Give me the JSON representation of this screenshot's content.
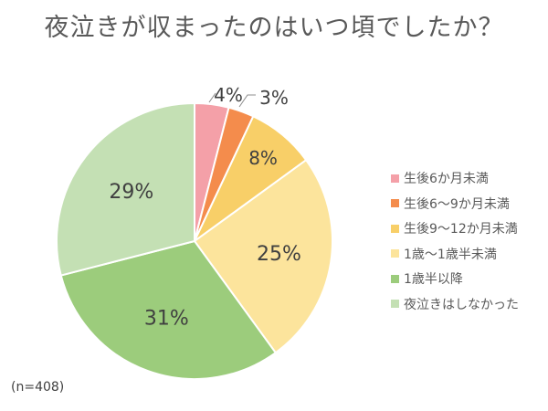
{
  "chart_data": {
    "type": "pie",
    "title": "夜泣きが収まったのはいつ頃でしたか？",
    "categories": [
      "生後6か月未満",
      "生後6〜9か月未満",
      "生後9〜12か月未満",
      "1歳〜1歳半未満",
      "1歳半以降",
      "夜泣きはしなかった"
    ],
    "values": [
      4,
      3,
      8,
      25,
      31,
      29
    ],
    "value_labels": [
      "4%",
      "3%",
      "8%",
      "25%",
      "31%",
      "29%"
    ],
    "colors": [
      "#F4A0A8",
      "#F48C4C",
      "#F8CF68",
      "#FCE49C",
      "#9CCC7C",
      "#C4E0B4"
    ],
    "legend_position": "right",
    "note": "(n=408)"
  }
}
